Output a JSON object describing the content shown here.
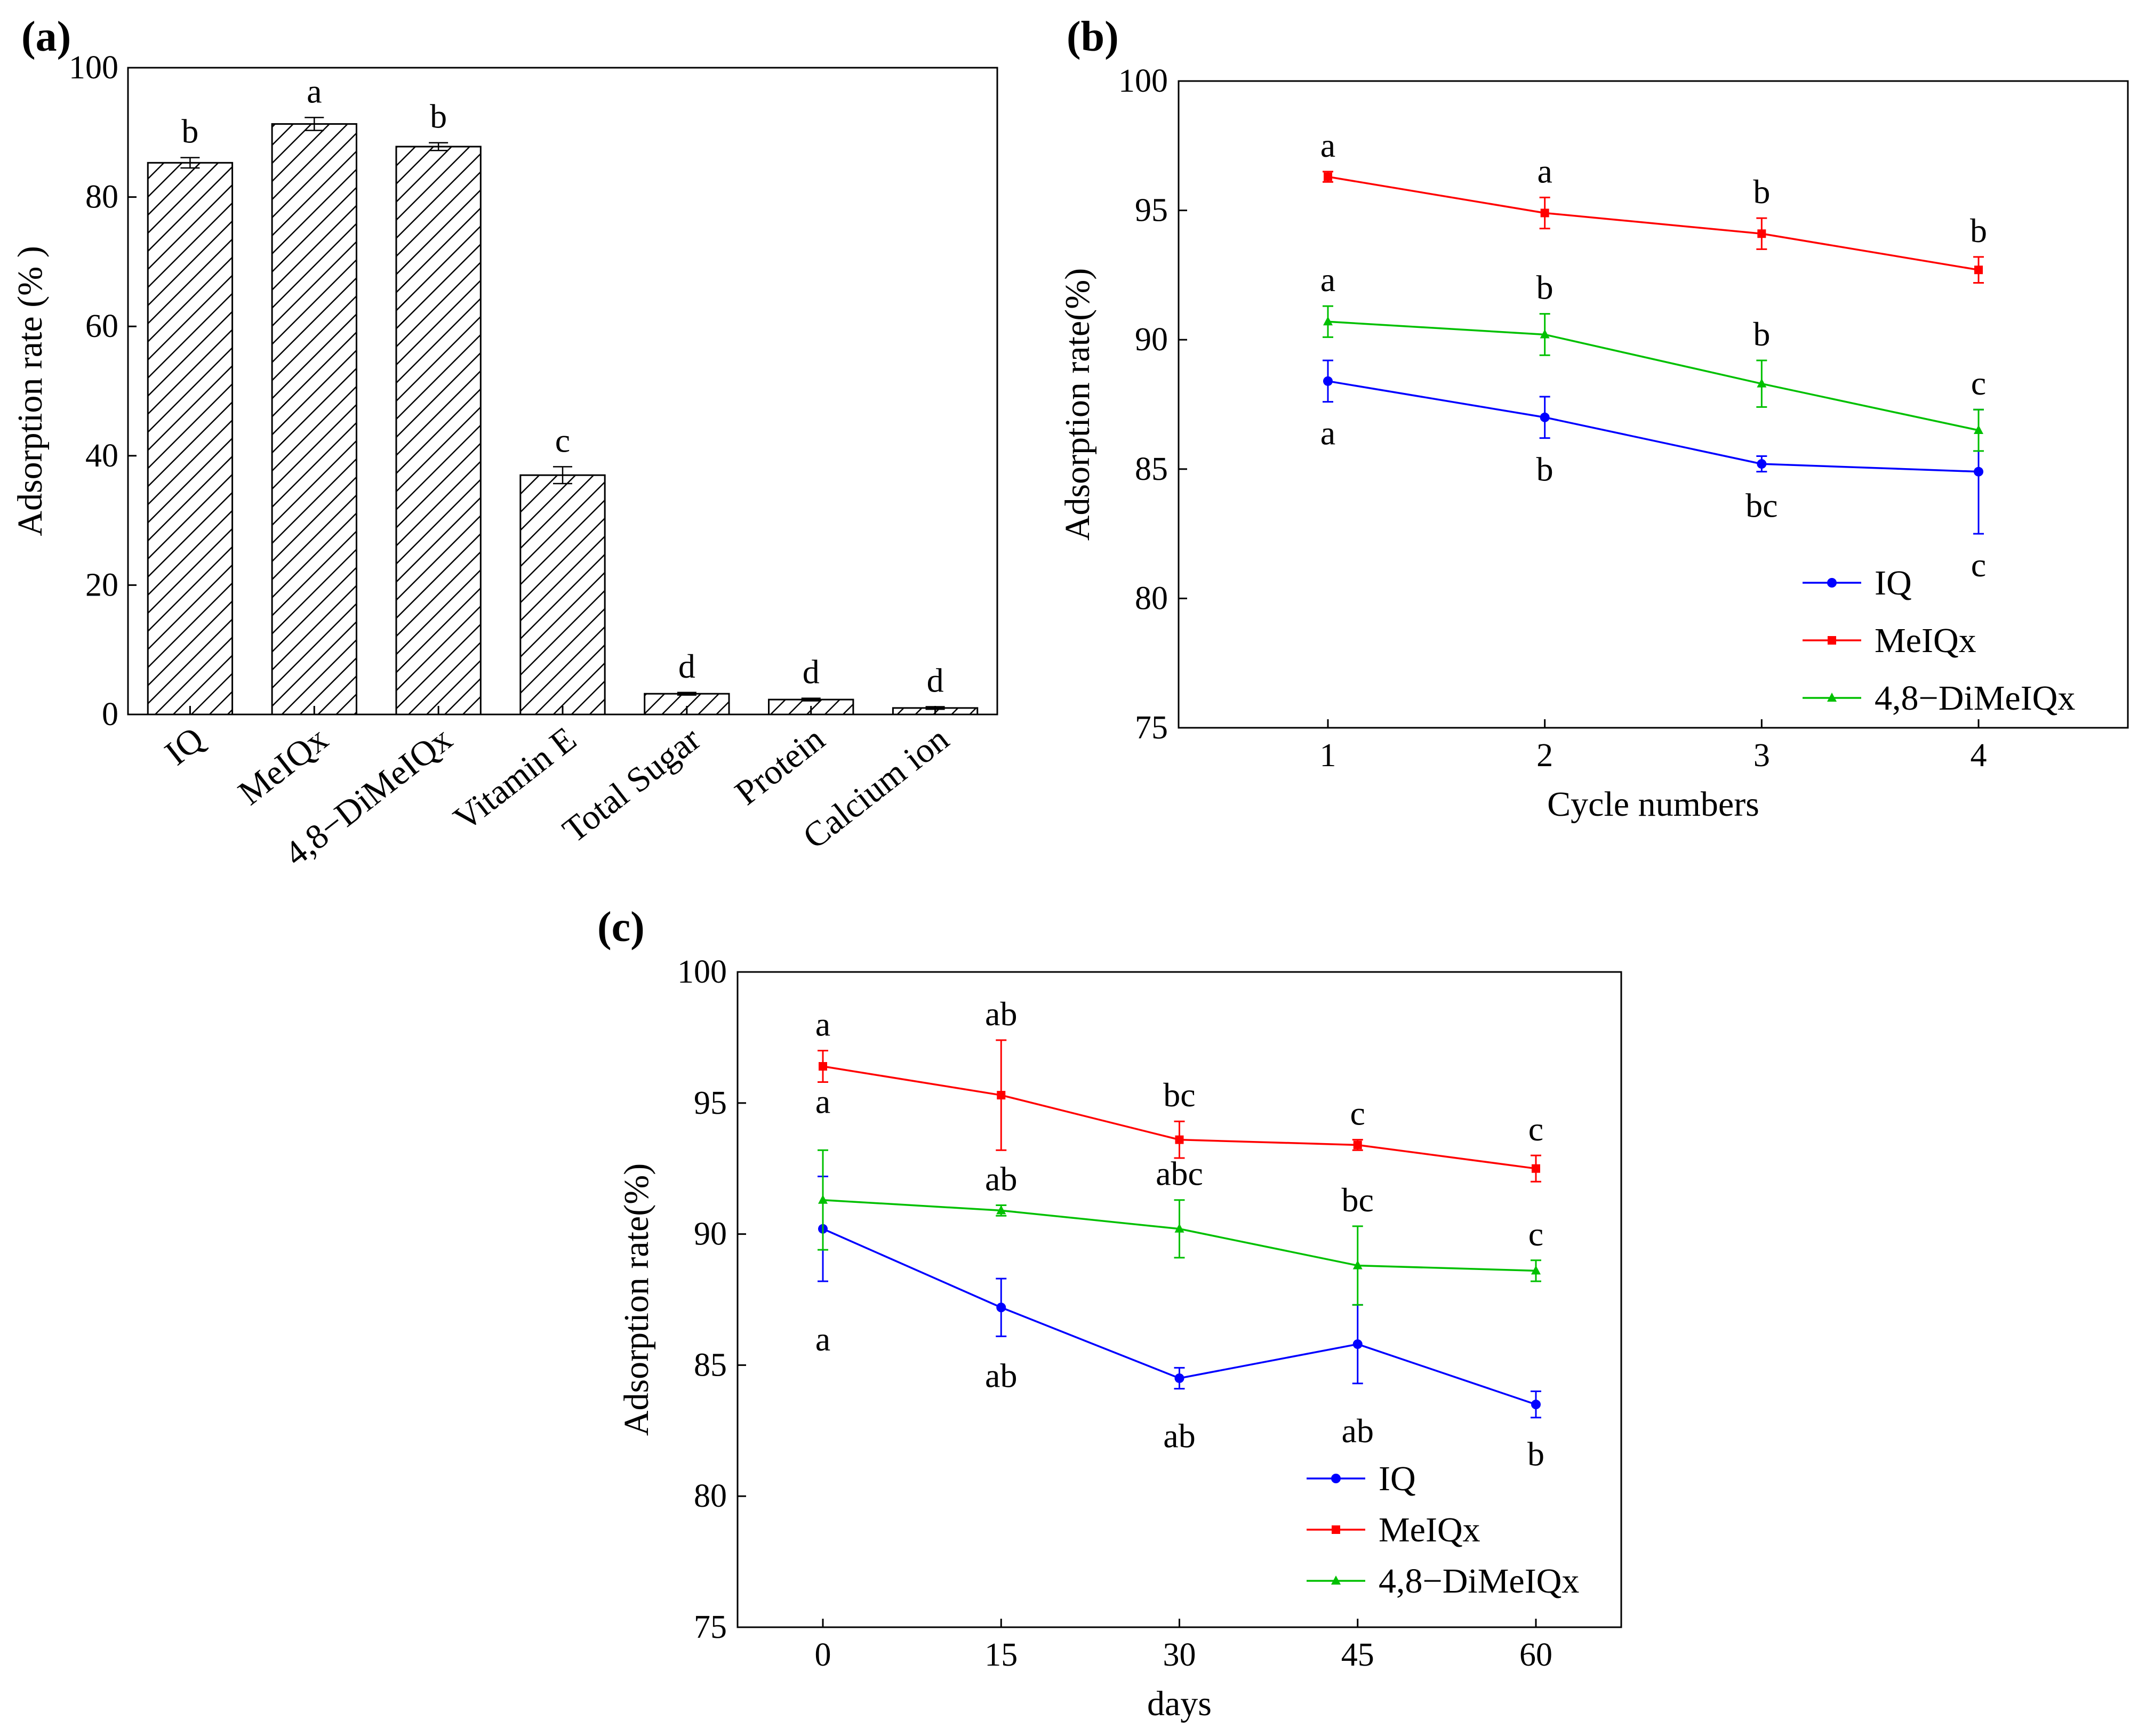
{
  "chart_data": [
    {
      "panel": "(a)",
      "type": "bar",
      "title": "",
      "xlabel": "",
      "ylabel": "Adsorption rate (% )",
      "ylim": [
        0,
        100
      ],
      "yticks": [
        0,
        20,
        40,
        60,
        80,
        100
      ],
      "categories": [
        "IQ",
        "MeIQx",
        "4,8−DiMeIQx",
        "Vitamin E",
        "Total Sugar",
        "Protein",
        "Calcium ion"
      ],
      "values": [
        85.3,
        91.3,
        87.8,
        37.0,
        3.2,
        2.3,
        1.0
      ],
      "errors": [
        0.8,
        1.0,
        0.6,
        1.3,
        0.2,
        0.2,
        0.2
      ],
      "significance": [
        "b",
        "a",
        "b",
        "c",
        "d",
        "d",
        "d"
      ],
      "pattern": "diagonal hatch"
    },
    {
      "panel": "(b)",
      "type": "line",
      "title": "",
      "xlabel": "Cycle numbers",
      "ylabel": "Adsorption rate(%)",
      "x": [
        1,
        2,
        3,
        4
      ],
      "xticks": [
        "1",
        "2",
        "3",
        "4"
      ],
      "ylim": [
        75,
        100
      ],
      "yticks": [
        75,
        80,
        85,
        90,
        95,
        100
      ],
      "legend_position": "bottom-right",
      "series": [
        {
          "name": "IQ",
          "color": "#0000ff",
          "marker": "circle",
          "values": [
            88.4,
            87.0,
            85.2,
            84.9
          ],
          "errors": [
            0.8,
            0.8,
            0.3,
            2.4
          ],
          "significance": [
            "a",
            "b",
            "bc",
            "c"
          ]
        },
        {
          "name": "MeIQx",
          "color": "#ff0000",
          "marker": "square",
          "values": [
            96.3,
            94.9,
            94.1,
            92.7
          ],
          "errors": [
            0.2,
            0.6,
            0.6,
            0.5
          ],
          "significance": [
            "a",
            "a",
            "b",
            "b"
          ]
        },
        {
          "name": "4,8−DiMeIQx",
          "color": "#00c000",
          "marker": "triangle",
          "values": [
            90.7,
            90.2,
            88.3,
            86.5
          ],
          "errors": [
            0.6,
            0.8,
            0.9,
            0.8
          ],
          "significance": [
            "a",
            "b",
            "b",
            "c"
          ]
        }
      ]
    },
    {
      "panel": "(c)",
      "type": "line",
      "title": "",
      "xlabel": "days",
      "ylabel": "Adsorption rate(%)",
      "x": [
        0,
        15,
        30,
        45,
        60
      ],
      "xticks": [
        "0",
        "15",
        "30",
        "45",
        "60"
      ],
      "ylim": [
        75,
        100
      ],
      "yticks": [
        75,
        80,
        85,
        90,
        95,
        100
      ],
      "legend_position": "bottom-right",
      "series": [
        {
          "name": "IQ",
          "color": "#0000ff",
          "marker": "circle",
          "values": [
            90.2,
            87.2,
            84.5,
            85.8,
            83.5
          ],
          "errors": [
            2.0,
            1.1,
            0.4,
            1.5,
            0.5
          ],
          "significance": [
            "a",
            "ab",
            "ab",
            "ab",
            "b"
          ]
        },
        {
          "name": "MeIQx",
          "color": "#ff0000",
          "marker": "square",
          "values": [
            96.4,
            95.3,
            93.6,
            93.4,
            92.5
          ],
          "errors": [
            0.6,
            2.1,
            0.7,
            0.2,
            0.5
          ],
          "significance": [
            "a",
            "ab",
            "bc",
            "c",
            "c"
          ]
        },
        {
          "name": "4,8−DiMeIQx",
          "color": "#00c000",
          "marker": "triangle",
          "values": [
            91.3,
            90.9,
            90.2,
            88.8,
            88.6
          ],
          "errors": [
            1.9,
            0.2,
            1.1,
            1.5,
            0.4
          ],
          "significance": [
            "a",
            "ab",
            "abc",
            "bc",
            "c"
          ]
        }
      ]
    }
  ]
}
